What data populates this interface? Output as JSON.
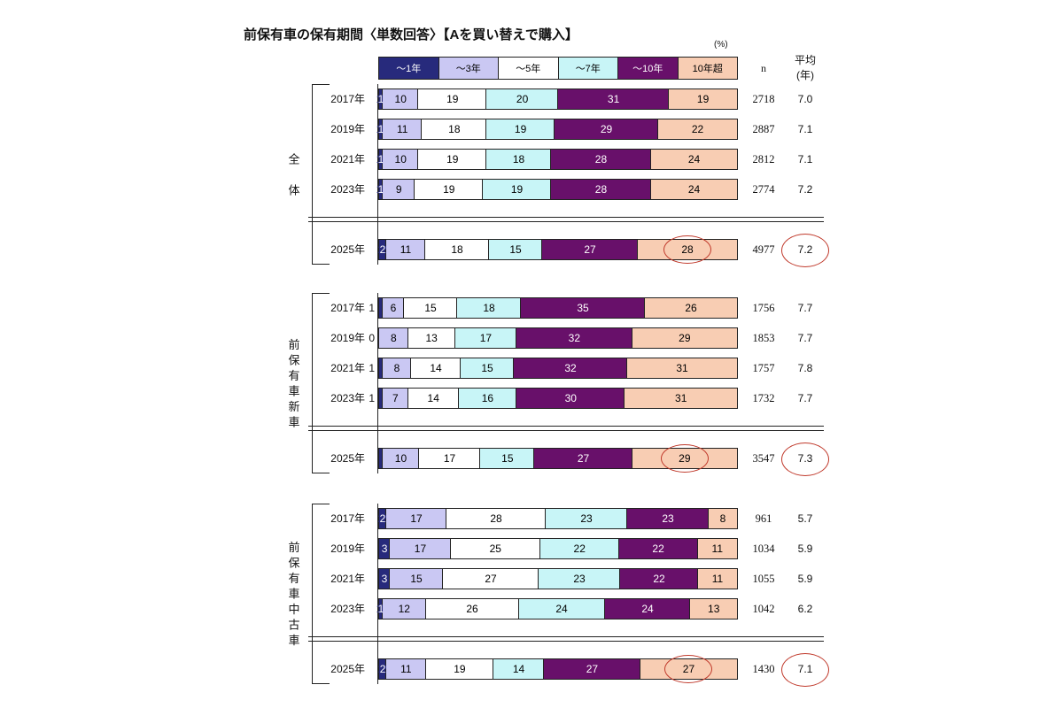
{
  "chart_data": {
    "type": "bar",
    "horizontal": true,
    "stacked": true,
    "title": "前保有車の保有期間〈単数回答〉【Aを買い替えで購入】",
    "unit": "(%)",
    "xlim": [
      0,
      100
    ],
    "legend_placement": "top",
    "annotation_color": "#c0392b",
    "series": [
      {
        "name": "～1年",
        "color": "#272a7c",
        "text_color": "#ffffff"
      },
      {
        "name": "～3年",
        "color": "#cac8f3",
        "text_color": "#000000"
      },
      {
        "name": "～5年",
        "color": "#ffffff",
        "text_color": "#000000"
      },
      {
        "name": "～7年",
        "color": "#c8f5f7",
        "text_color": "#000000"
      },
      {
        "name": "～10年",
        "color": "#68106a",
        "text_color": "#ffffff"
      },
      {
        "name": "10年超",
        "color": "#f8cdb3",
        "text_color": "#000000"
      }
    ],
    "columns": {
      "n": "n",
      "average": "平均",
      "average_unit": "(年)"
    },
    "groups": [
      {
        "label": "全体",
        "first_label_outside": false,
        "rows": [
          {
            "year": "2017年",
            "values": [
              1,
              10,
              19,
              20,
              31,
              19
            ],
            "n": 2718,
            "average": "7.0"
          },
          {
            "year": "2019年",
            "values": [
              1,
              11,
              18,
              19,
              29,
              22
            ],
            "n": 2887,
            "average": "7.1"
          },
          {
            "year": "2021年",
            "values": [
              1,
              10,
              19,
              18,
              28,
              24
            ],
            "n": 2812,
            "average": "7.1"
          },
          {
            "year": "2023年",
            "values": [
              1,
              9,
              19,
              19,
              28,
              24
            ],
            "n": 2774,
            "average": "7.2"
          },
          {
            "year": "2025年",
            "values": [
              2,
              11,
              18,
              15,
              27,
              28
            ],
            "n": 4977,
            "average": "7.2",
            "highlighted": true
          }
        ]
      },
      {
        "label": "前保有車新車",
        "first_label_outside": true,
        "rows": [
          {
            "year": "2017年",
            "values": [
              1,
              6,
              15,
              18,
              35,
              26
            ],
            "n": 1756,
            "average": "7.7"
          },
          {
            "year": "2019年",
            "values": [
              0,
              8,
              13,
              17,
              32,
              29
            ],
            "n": 1853,
            "average": "7.7"
          },
          {
            "year": "2021年",
            "values": [
              1,
              8,
              14,
              15,
              32,
              31
            ],
            "n": 1757,
            "average": "7.8"
          },
          {
            "year": "2023年",
            "values": [
              1,
              7,
              14,
              16,
              30,
              31
            ],
            "n": 1732,
            "average": "7.7"
          },
          {
            "year": "2025年",
            "values": [
              1,
              10,
              17,
              15,
              27,
              29
            ],
            "hidden_labels": [
              0
            ],
            "n": 3547,
            "average": "7.3",
            "highlighted": true
          }
        ]
      },
      {
        "label": "前保有車中古車",
        "first_label_outside": false,
        "rows": [
          {
            "year": "2017年",
            "values": [
              2,
              17,
              28,
              23,
              23,
              8
            ],
            "n": 961,
            "average": "5.7"
          },
          {
            "year": "2019年",
            "values": [
              3,
              17,
              25,
              22,
              22,
              11
            ],
            "n": 1034,
            "average": "5.9"
          },
          {
            "year": "2021年",
            "values": [
              3,
              15,
              27,
              23,
              22,
              11
            ],
            "n": 1055,
            "average": "5.9"
          },
          {
            "year": "2023年",
            "values": [
              1,
              12,
              26,
              24,
              24,
              13
            ],
            "n": 1042,
            "average": "6.2"
          },
          {
            "year": "2025年",
            "values": [
              2,
              11,
              19,
              14,
              27,
              27
            ],
            "n": 1430,
            "average": "7.1",
            "highlighted": true
          }
        ]
      }
    ]
  }
}
